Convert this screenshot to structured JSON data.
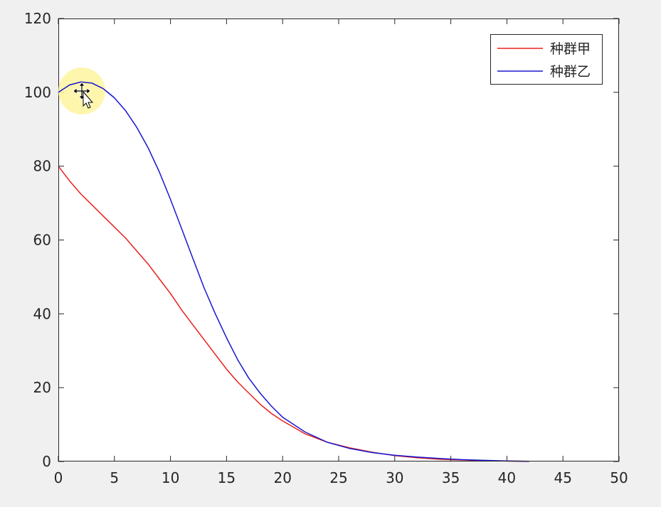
{
  "figure": {
    "background": "#f0f0f0",
    "axes_background": "#ffffff"
  },
  "cursor": {
    "icon": "move-cursor-icon",
    "highlight_color": "#fff5a0"
  },
  "chart_data": {
    "type": "line",
    "title": "",
    "xlabel": "",
    "ylabel": "",
    "xlim": [
      0,
      50
    ],
    "ylim": [
      0,
      120
    ],
    "xticks": [
      0,
      5,
      10,
      15,
      20,
      25,
      30,
      35,
      40,
      45,
      50
    ],
    "yticks": [
      0,
      20,
      40,
      60,
      80,
      100,
      120
    ],
    "xtick_labels": [
      "0",
      "5",
      "10",
      "15",
      "20",
      "25",
      "30",
      "35",
      "40",
      "45",
      "50"
    ],
    "ytick_labels": [
      "0",
      "20",
      "40",
      "60",
      "80",
      "100",
      "120"
    ],
    "grid": false,
    "legend_position": "top-right",
    "series": [
      {
        "name": "种群甲",
        "color": "#e8201a",
        "x": [
          0,
          1,
          2,
          3,
          4,
          5,
          6,
          7,
          8,
          9,
          10,
          11,
          12,
          13,
          14,
          15,
          16,
          17,
          18,
          19,
          20,
          22,
          24,
          26,
          28,
          30,
          32,
          34,
          36,
          38,
          40,
          42
        ],
        "y": [
          80,
          76,
          72.5,
          69.5,
          66.5,
          63.5,
          60.5,
          57,
          53.5,
          49.5,
          45.5,
          41,
          37,
          33,
          29,
          25,
          21.5,
          18.5,
          15.5,
          13,
          11,
          7.5,
          5.2,
          3.7,
          2.5,
          1.6,
          1.0,
          0.6,
          0.4,
          0.25,
          0.12,
          0.05
        ]
      },
      {
        "name": "种群乙",
        "color": "#1818d0",
        "x": [
          0,
          1,
          2,
          3,
          4,
          5,
          6,
          7,
          8,
          9,
          10,
          11,
          12,
          13,
          14,
          15,
          16,
          17,
          18,
          19,
          20,
          22,
          24,
          26,
          28,
          30,
          32,
          34,
          36,
          38,
          40,
          42
        ],
        "y": [
          100,
          102,
          102.8,
          102.5,
          101,
          98.5,
          95,
          90.5,
          85,
          78.5,
          71,
          63,
          55,
          47,
          40,
          33.5,
          27.5,
          22.5,
          18.5,
          15,
          12,
          8,
          5.2,
          3.5,
          2.4,
          1.7,
          1.2,
          0.8,
          0.5,
          0.3,
          0.15,
          0.05
        ]
      }
    ]
  }
}
